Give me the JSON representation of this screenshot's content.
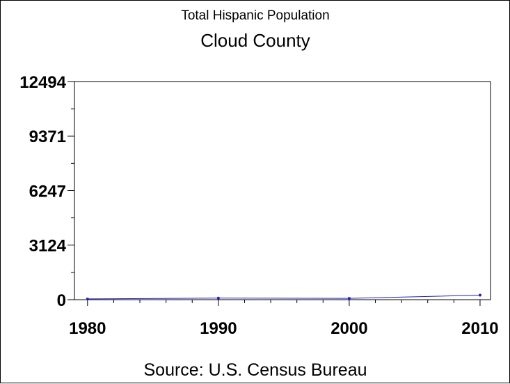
{
  "chart_data": {
    "type": "line",
    "title": "Total Hispanic Population",
    "subtitle": "Cloud County",
    "footnote": "Source: U.S. Census Bureau",
    "x": [
      1980,
      1990,
      2000,
      2010
    ],
    "series": [
      {
        "values": [
          42,
          88,
          75,
          260
        ],
        "color": "#1f1fbf"
      }
    ],
    "xlim": [
      1979,
      2010.8
    ],
    "ylim": [
      0,
      12494
    ],
    "x_ticks": [
      "1980",
      "1990",
      "2000",
      "2010"
    ],
    "y_ticks": [
      "0",
      "3124",
      "6247",
      "9371",
      "12494"
    ],
    "y_tick_values": [
      0,
      3124,
      6247,
      9371,
      12494
    ],
    "x_minor_step": 2,
    "grid": false,
    "legend": "none"
  }
}
